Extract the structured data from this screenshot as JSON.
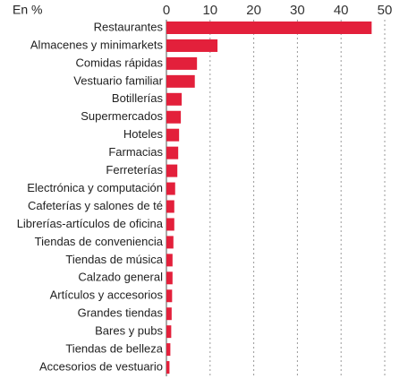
{
  "chart_data": {
    "type": "bar",
    "orientation": "horizontal",
    "subtitle": "En %",
    "categories": [
      "Restaurantes",
      "Almacenes y minimarkets",
      "Comidas rápidas",
      "Vestuario familiar",
      "Botillerías",
      "Supermercados",
      "Hoteles",
      "Farmacias",
      "Ferreterías",
      "Electrónica y computación",
      "Cafeterías y salones de té",
      "Librerías-artículos de oficina",
      "Tiendas de conveniencia",
      "Tiendas de música",
      "Calzado general",
      "Artículos y accesorios",
      "Grandes tiendas",
      "Bares y pubs",
      "Tiendas de belleza",
      "Accesorios de vestuario"
    ],
    "values": [
      47,
      11.7,
      7,
      6.5,
      3.5,
      3.3,
      2.9,
      2.7,
      2.5,
      2,
      1.8,
      1.8,
      1.6,
      1.4,
      1.4,
      1.3,
      1.2,
      1.1,
      0.9,
      0.7
    ],
    "color": "#e3203b",
    "xlim": [
      0,
      50
    ],
    "xticks": [
      0,
      10,
      20,
      30,
      40,
      50
    ],
    "grid": true
  }
}
